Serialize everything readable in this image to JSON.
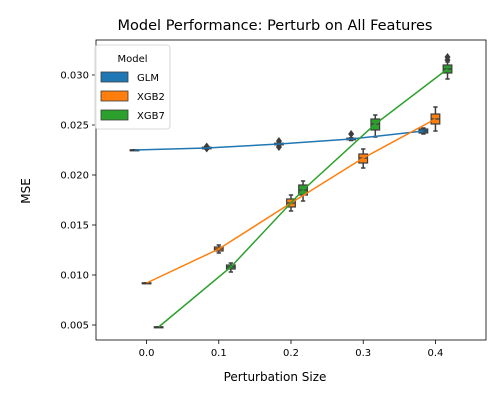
{
  "chart_data": {
    "type": "line",
    "title": "Model Performance: Perturb on All Features",
    "xlabel": "Perturbation Size",
    "ylabel": "MSE",
    "x": [
      0.0,
      0.1,
      0.2,
      0.3,
      0.4
    ],
    "x_ticks": [
      "0.0",
      "0.1",
      "0.2",
      "0.3",
      "0.4"
    ],
    "y_ticks": [
      "0.005",
      "0.010",
      "0.015",
      "0.020",
      "0.025",
      "0.030"
    ],
    "y_tick_values": [
      0.005,
      0.01,
      0.015,
      0.02,
      0.025,
      0.03
    ],
    "xlim": [
      -0.07,
      0.47
    ],
    "ylim": [
      0.0035,
      0.0335
    ],
    "legend": {
      "title": "Model",
      "placement": "top-left"
    },
    "grid": false,
    "series": [
      {
        "name": "GLM",
        "color": "#1f77b4",
        "values": [
          0.0225,
          0.0227,
          0.0231,
          0.0236,
          0.0244
        ],
        "boxes": [
          {
            "q1": 0.02248,
            "med": 0.0225,
            "q3": 0.02252,
            "wlo": 0.02248,
            "whi": 0.02252,
            "outliers": []
          },
          {
            "q1": 0.02262,
            "med": 0.0227,
            "q3": 0.02278,
            "wlo": 0.02258,
            "whi": 0.0228,
            "outliers": [
              0.02285,
              0.02265
            ]
          },
          {
            "q1": 0.02302,
            "med": 0.0231,
            "q3": 0.02318,
            "wlo": 0.02295,
            "whi": 0.0232,
            "outliers": [
              0.0234,
              0.0228
            ]
          },
          {
            "q1": 0.02352,
            "med": 0.0236,
            "q3": 0.02368,
            "wlo": 0.02345,
            "whi": 0.02372,
            "outliers": [
              0.0241
            ]
          },
          {
            "q1": 0.0242,
            "med": 0.0244,
            "q3": 0.0246,
            "wlo": 0.0241,
            "whi": 0.0247,
            "outliers": []
          }
        ]
      },
      {
        "name": "XGB2",
        "color": "#ff7f0e",
        "values": [
          0.0092,
          0.0126,
          0.0172,
          0.0217,
          0.0256
        ],
        "boxes": [
          {
            "q1": 0.00918,
            "med": 0.0092,
            "q3": 0.00922,
            "wlo": 0.00918,
            "whi": 0.00922,
            "outliers": []
          },
          {
            "q1": 0.0124,
            "med": 0.0126,
            "q3": 0.0128,
            "wlo": 0.0122,
            "whi": 0.013,
            "outliers": []
          },
          {
            "q1": 0.0168,
            "med": 0.0172,
            "q3": 0.0176,
            "wlo": 0.0164,
            "whi": 0.018,
            "outliers": []
          },
          {
            "q1": 0.0212,
            "med": 0.0217,
            "q3": 0.0221,
            "wlo": 0.0207,
            "whi": 0.0226,
            "outliers": []
          },
          {
            "q1": 0.0251,
            "med": 0.0256,
            "q3": 0.0261,
            "wlo": 0.0244,
            "whi": 0.0268,
            "outliers": []
          }
        ]
      },
      {
        "name": "XGB7",
        "color": "#2ca02c",
        "values": [
          0.0048,
          0.0108,
          0.0185,
          0.0251,
          0.0306
        ],
        "boxes": [
          {
            "q1": 0.00478,
            "med": 0.0048,
            "q3": 0.00482,
            "wlo": 0.00478,
            "whi": 0.00482,
            "outliers": []
          },
          {
            "q1": 0.0106,
            "med": 0.0108,
            "q3": 0.011,
            "wlo": 0.0103,
            "whi": 0.0112,
            "outliers": []
          },
          {
            "q1": 0.018,
            "med": 0.0185,
            "q3": 0.019,
            "wlo": 0.0174,
            "whi": 0.0194,
            "outliers": []
          },
          {
            "q1": 0.0245,
            "med": 0.0251,
            "q3": 0.0256,
            "wlo": 0.0238,
            "whi": 0.026,
            "outliers": []
          },
          {
            "q1": 0.0302,
            "med": 0.0306,
            "q3": 0.031,
            "wlo": 0.0296,
            "whi": 0.0313,
            "outliers": [
              0.0318,
              0.0315
            ]
          }
        ]
      }
    ]
  }
}
